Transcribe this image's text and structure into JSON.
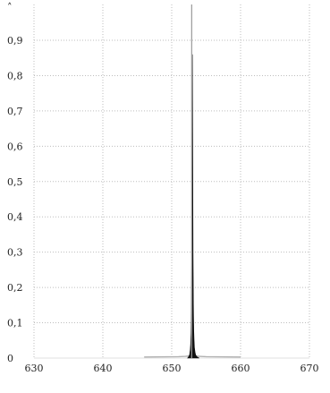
{
  "chart_data": {
    "type": "area",
    "title": "",
    "xlabel": "",
    "ylabel": "",
    "xlim": [
      630,
      670
    ],
    "ylim": [
      0,
      1
    ],
    "x_ticks": [
      630,
      640,
      650,
      660,
      670
    ],
    "x_tick_labels": [
      "630",
      "640",
      "650",
      "660",
      "670"
    ],
    "y_ticks": [
      0,
      0.1,
      0.2,
      0.3,
      0.4,
      0.5,
      0.6,
      0.7,
      0.8,
      0.9
    ],
    "y_tick_labels": [
      "0",
      "0,1",
      "0,2",
      "0,3",
      "0,4",
      "0,5",
      "0,6",
      "0,7",
      "0,8",
      "0,9"
    ],
    "grid": true,
    "grid_style": "dotted",
    "series": [
      {
        "color": "#111111",
        "x": [
          652.3,
          652.5,
          652.6,
          652.7,
          652.75,
          652.8,
          652.85,
          652.9,
          652.95,
          653.0,
          653.05,
          653.1,
          653.15,
          653.2,
          653.25,
          653.3,
          653.4,
          653.5,
          653.7,
          654.0
        ],
        "y": [
          0.0,
          0.005,
          0.01,
          0.025,
          0.04,
          0.07,
          0.13,
          0.28,
          0.56,
          0.86,
          0.62,
          0.3,
          0.15,
          0.08,
          0.05,
          0.03,
          0.015,
          0.008,
          0.003,
          0.0
        ]
      },
      {
        "color": "#b0b0b0",
        "x": [
          646.0,
          651.0,
          652.0,
          652.5,
          653.2,
          654.0,
          655.0,
          660.0
        ],
        "y": [
          0.003,
          0.004,
          0.005,
          0.006,
          0.006,
          0.005,
          0.004,
          0.003
        ]
      },
      {
        "color": "#999999",
        "x": [
          652.9,
          652.9
        ],
        "y": [
          0,
          1.02
        ]
      }
    ]
  }
}
